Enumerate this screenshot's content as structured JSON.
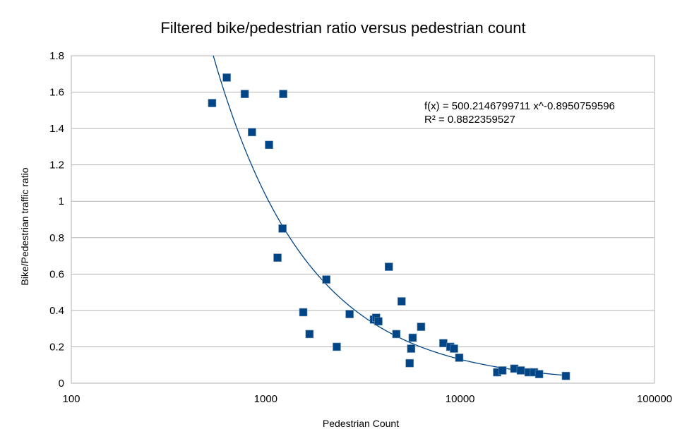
{
  "chart_data": {
    "type": "scatter",
    "title": "Filtered bike/pedestrian ratio versus pedestrian count",
    "xlabel": "Pedestrian Count",
    "ylabel": "Bike/Pedestrian traffic ratio",
    "x_scale": "log",
    "xlim": [
      100,
      100000
    ],
    "ylim": [
      0,
      1.8
    ],
    "x_ticks": [
      100,
      1000,
      10000,
      100000
    ],
    "x_tick_labels": [
      "100",
      "1000",
      "10000",
      "100000"
    ],
    "y_ticks": [
      0,
      0.2,
      0.4,
      0.6,
      0.8,
      1,
      1.2,
      1.4,
      1.6,
      1.8
    ],
    "y_tick_labels": [
      "0",
      "0.2",
      "0.4",
      "0.6",
      "0.8",
      "1",
      "1.2",
      "1.4",
      "1.6",
      "1.8"
    ],
    "grid": "horizontal",
    "legend": "none",
    "marker_color": "#004586",
    "trendline_color": "#004586",
    "trendline": {
      "type": "power",
      "a": 500.2146799711,
      "b": -0.8950759596,
      "equation_text": "f(x) = 500.2146799711 x^-0.8950759596",
      "r2_text": "R² = 0.8822359527"
    },
    "points": [
      {
        "x": 530,
        "y": 1.54
      },
      {
        "x": 630,
        "y": 1.68
      },
      {
        "x": 780,
        "y": 1.59
      },
      {
        "x": 850,
        "y": 1.38
      },
      {
        "x": 1040,
        "y": 1.31
      },
      {
        "x": 1230,
        "y": 1.59
      },
      {
        "x": 1220,
        "y": 0.85
      },
      {
        "x": 1150,
        "y": 0.69
      },
      {
        "x": 1560,
        "y": 0.39
      },
      {
        "x": 1680,
        "y": 0.27
      },
      {
        "x": 2050,
        "y": 0.57
      },
      {
        "x": 2320,
        "y": 0.2
      },
      {
        "x": 2700,
        "y": 0.38
      },
      {
        "x": 3600,
        "y": 0.35
      },
      {
        "x": 3700,
        "y": 0.36
      },
      {
        "x": 3800,
        "y": 0.34
      },
      {
        "x": 4300,
        "y": 0.64
      },
      {
        "x": 4700,
        "y": 0.27
      },
      {
        "x": 5000,
        "y": 0.45
      },
      {
        "x": 5500,
        "y": 0.11
      },
      {
        "x": 5600,
        "y": 0.19
      },
      {
        "x": 5700,
        "y": 0.25
      },
      {
        "x": 6300,
        "y": 0.31
      },
      {
        "x": 8200,
        "y": 0.22
      },
      {
        "x": 8900,
        "y": 0.2
      },
      {
        "x": 9300,
        "y": 0.19
      },
      {
        "x": 9900,
        "y": 0.14
      },
      {
        "x": 15500,
        "y": 0.06
      },
      {
        "x": 16500,
        "y": 0.07
      },
      {
        "x": 19000,
        "y": 0.08
      },
      {
        "x": 20500,
        "y": 0.07
      },
      {
        "x": 22500,
        "y": 0.06
      },
      {
        "x": 24000,
        "y": 0.06
      },
      {
        "x": 25500,
        "y": 0.05
      },
      {
        "x": 35000,
        "y": 0.04
      }
    ]
  }
}
